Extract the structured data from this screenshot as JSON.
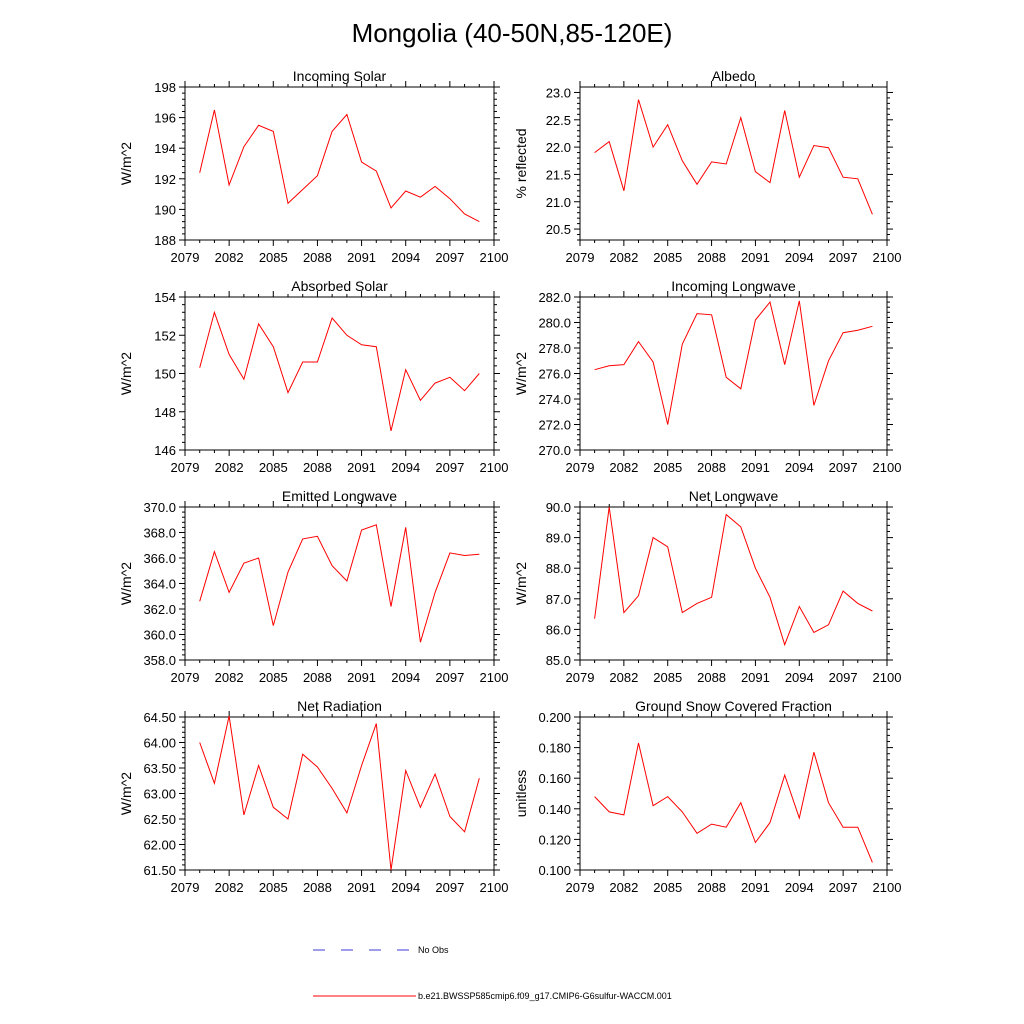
{
  "page": {
    "title": "Mongolia (40-50N,85-120E)",
    "legend": {
      "no_obs_label": "No Obs",
      "model_label": "b.e21.BWSSP585cmip6.f09_g17.CMIP6-G6sulfur-WACCM.001",
      "no_obs_color": "#3b3bd9",
      "model_color": "#ff0000"
    }
  },
  "chart_data": [
    {
      "type": "line",
      "title": "Incoming Solar",
      "ylabel": "W/m^2",
      "xlim": [
        2079,
        2100
      ],
      "ylim": [
        188,
        198
      ],
      "xticks": [
        "2079",
        "2082",
        "2085",
        "2088",
        "2091",
        "2094",
        "2097",
        "2100"
      ],
      "yticks": [
        "188",
        "190",
        "192",
        "194",
        "196",
        "198"
      ],
      "x": [
        2080,
        2081,
        2082,
        2083,
        2084,
        2085,
        2086,
        2087,
        2088,
        2089,
        2090,
        2091,
        2092,
        2093,
        2094,
        2095,
        2096,
        2097,
        2098,
        2099
      ],
      "series": [
        {
          "name": "b.e21.BWSSP585cmip6.f09_g17.CMIP6-G6sulfur-WACCM.001",
          "color": "#ff0000",
          "values": [
            192.4,
            196.5,
            191.6,
            194.1,
            195.5,
            195.1,
            190.4,
            191.3,
            192.2,
            195.1,
            196.2,
            193.1,
            192.5,
            190.1,
            191.2,
            190.8,
            191.5,
            190.7,
            189.7,
            189.2
          ]
        }
      ]
    },
    {
      "type": "line",
      "title": "Albedo",
      "ylabel": "% reflected",
      "xlim": [
        2079,
        2100
      ],
      "ylim": [
        20.3,
        23.1
      ],
      "xticks": [
        "2079",
        "2082",
        "2085",
        "2088",
        "2091",
        "2094",
        "2097",
        "2100"
      ],
      "yticks": [
        "20.5",
        "21.0",
        "21.5",
        "22.0",
        "22.5",
        "23.0"
      ],
      "x": [
        2080,
        2081,
        2082,
        2083,
        2084,
        2085,
        2086,
        2087,
        2088,
        2089,
        2090,
        2091,
        2092,
        2093,
        2094,
        2095,
        2096,
        2097,
        2098,
        2099
      ],
      "series": [
        {
          "name": "b.e21.BWSSP585cmip6.f09_g17.CMIP6-G6sulfur-WACCM.001",
          "color": "#ff0000",
          "values": [
            21.9,
            22.1,
            21.2,
            22.87,
            22.0,
            22.41,
            21.75,
            21.32,
            21.73,
            21.69,
            22.54,
            21.55,
            21.35,
            22.67,
            21.45,
            22.03,
            21.99,
            21.45,
            21.42,
            20.77
          ]
        }
      ]
    },
    {
      "type": "line",
      "title": "Absorbed Solar",
      "ylabel": "W/m^2",
      "xlim": [
        2079,
        2100
      ],
      "ylim": [
        146,
        154
      ],
      "xticks": [
        "2079",
        "2082",
        "2085",
        "2088",
        "2091",
        "2094",
        "2097",
        "2100"
      ],
      "yticks": [
        "146",
        "148",
        "150",
        "152",
        "154"
      ],
      "x": [
        2080,
        2081,
        2082,
        2083,
        2084,
        2085,
        2086,
        2087,
        2088,
        2089,
        2090,
        2091,
        2092,
        2093,
        2094,
        2095,
        2096,
        2097,
        2098,
        2099
      ],
      "series": [
        {
          "name": "b.e21.BWSSP585cmip6.f09_g17.CMIP6-G6sulfur-WACCM.001",
          "color": "#ff0000",
          "values": [
            150.3,
            153.2,
            151.0,
            149.7,
            152.6,
            151.4,
            149.0,
            150.6,
            150.6,
            152.9,
            152.0,
            151.5,
            151.4,
            147.0,
            150.2,
            148.6,
            149.5,
            149.8,
            149.1,
            150.0
          ]
        }
      ]
    },
    {
      "type": "line",
      "title": "Incoming Longwave",
      "ylabel": "W/m^2",
      "xlim": [
        2079,
        2100
      ],
      "ylim": [
        270,
        282
      ],
      "xticks": [
        "2079",
        "2082",
        "2085",
        "2088",
        "2091",
        "2094",
        "2097",
        "2100"
      ],
      "yticks": [
        "270.0",
        "272.0",
        "274.0",
        "276.0",
        "278.0",
        "280.0",
        "282.0"
      ],
      "x": [
        2080,
        2081,
        2082,
        2083,
        2084,
        2085,
        2086,
        2087,
        2088,
        2089,
        2090,
        2091,
        2092,
        2093,
        2094,
        2095,
        2096,
        2097,
        2098,
        2099
      ],
      "series": [
        {
          "name": "b.e21.BWSSP585cmip6.f09_g17.CMIP6-G6sulfur-WACCM.001",
          "color": "#ff0000",
          "values": [
            276.3,
            276.6,
            276.7,
            278.5,
            276.9,
            272.0,
            278.3,
            280.7,
            280.6,
            275.7,
            274.8,
            280.2,
            281.6,
            276.7,
            281.7,
            273.5,
            277.0,
            279.2,
            279.4,
            279.7
          ]
        }
      ]
    },
    {
      "type": "line",
      "title": "Emitted Longwave",
      "ylabel": "W/m^2",
      "xlim": [
        2079,
        2100
      ],
      "ylim": [
        358,
        370
      ],
      "xticks": [
        "2079",
        "2082",
        "2085",
        "2088",
        "2091",
        "2094",
        "2097",
        "2100"
      ],
      "yticks": [
        "358.0",
        "360.0",
        "362.0",
        "364.0",
        "366.0",
        "368.0",
        "370.0"
      ],
      "x": [
        2080,
        2081,
        2082,
        2083,
        2084,
        2085,
        2086,
        2087,
        2088,
        2089,
        2090,
        2091,
        2092,
        2093,
        2094,
        2095,
        2096,
        2097,
        2098,
        2099
      ],
      "series": [
        {
          "name": "b.e21.BWSSP585cmip6.f09_g17.CMIP6-G6sulfur-WACCM.001",
          "color": "#ff0000",
          "values": [
            362.6,
            366.5,
            363.3,
            365.6,
            366.0,
            360.7,
            364.9,
            367.5,
            367.7,
            365.4,
            364.2,
            368.2,
            368.6,
            362.2,
            368.4,
            359.4,
            363.3,
            366.4,
            366.2,
            366.3
          ]
        }
      ]
    },
    {
      "type": "line",
      "title": "Net Longwave",
      "ylabel": "W/m^2",
      "xlim": [
        2079,
        2100
      ],
      "ylim": [
        85,
        90
      ],
      "xticks": [
        "2079",
        "2082",
        "2085",
        "2088",
        "2091",
        "2094",
        "2097",
        "2100"
      ],
      "yticks": [
        "85.0",
        "86.0",
        "87.0",
        "88.0",
        "89.0",
        "90.0"
      ],
      "x": [
        2080,
        2081,
        2082,
        2083,
        2084,
        2085,
        2086,
        2087,
        2088,
        2089,
        2090,
        2091,
        2092,
        2093,
        2094,
        2095,
        2096,
        2097,
        2098,
        2099
      ],
      "series": [
        {
          "name": "b.e21.BWSSP585cmip6.f09_g17.CMIP6-G6sulfur-WACCM.001",
          "color": "#ff0000",
          "values": [
            86.35,
            90.0,
            86.55,
            87.1,
            89.0,
            88.7,
            86.55,
            86.85,
            87.05,
            89.75,
            89.35,
            88.0,
            87.05,
            85.5,
            86.75,
            85.9,
            86.15,
            87.25,
            86.85,
            86.6
          ]
        }
      ]
    },
    {
      "type": "line",
      "title": "Net Radiation",
      "ylabel": "W/m^2",
      "xlim": [
        2079,
        2100
      ],
      "ylim": [
        61.5,
        64.5
      ],
      "xticks": [
        "2079",
        "2082",
        "2085",
        "2088",
        "2091",
        "2094",
        "2097",
        "2100"
      ],
      "yticks": [
        "61.50",
        "62.00",
        "62.50",
        "63.00",
        "63.50",
        "64.00",
        "64.50"
      ],
      "x": [
        2080,
        2081,
        2082,
        2083,
        2084,
        2085,
        2086,
        2087,
        2088,
        2089,
        2090,
        2091,
        2092,
        2093,
        2094,
        2095,
        2096,
        2097,
        2098,
        2099
      ],
      "series": [
        {
          "name": "b.e21.BWSSP585cmip6.f09_g17.CMIP6-G6sulfur-WACCM.001",
          "color": "#ff0000",
          "values": [
            64.0,
            63.2,
            64.52,
            62.58,
            63.55,
            62.73,
            62.5,
            63.77,
            63.52,
            63.1,
            62.62,
            63.55,
            64.37,
            61.5,
            63.45,
            62.73,
            63.38,
            62.55,
            62.25,
            63.3
          ]
        }
      ]
    },
    {
      "type": "line",
      "title": "Ground Snow Covered Fraction",
      "ylabel": "unitless",
      "xlim": [
        2079,
        2100
      ],
      "ylim": [
        0.1,
        0.2
      ],
      "xticks": [
        "2079",
        "2082",
        "2085",
        "2088",
        "2091",
        "2094",
        "2097",
        "2100"
      ],
      "yticks": [
        "0.100",
        "0.120",
        "0.140",
        "0.160",
        "0.180",
        "0.200"
      ],
      "x": [
        2080,
        2081,
        2082,
        2083,
        2084,
        2085,
        2086,
        2087,
        2088,
        2089,
        2090,
        2091,
        2092,
        2093,
        2094,
        2095,
        2096,
        2097,
        2098,
        2099
      ],
      "series": [
        {
          "name": "b.e21.BWSSP585cmip6.f09_g17.CMIP6-G6sulfur-WACCM.001",
          "color": "#ff0000",
          "values": [
            0.148,
            0.138,
            0.136,
            0.183,
            0.142,
            0.148,
            0.138,
            0.124,
            0.13,
            0.128,
            0.144,
            0.118,
            0.131,
            0.162,
            0.134,
            0.177,
            0.144,
            0.128,
            0.128,
            0.105
          ]
        }
      ]
    }
  ]
}
